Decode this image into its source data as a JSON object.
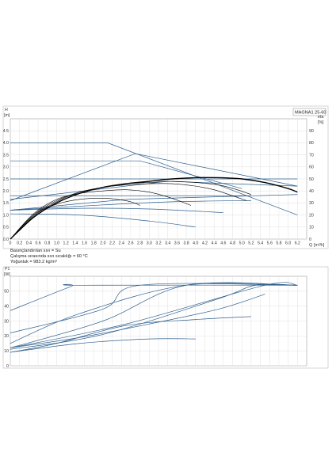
{
  "chart_data": [
    {
      "type": "line",
      "title": "MAGNA1 25-60",
      "ylabel_left": "H",
      "ylabel_left_unit": "[m]",
      "ylabel_right": "eta",
      "ylabel_right_unit": "[%]",
      "xlabel": "Q",
      "xlabel_unit": "[m³/h]",
      "xlim": [
        0,
        6.4
      ],
      "ylim": [
        0,
        5.0
      ],
      "ylim_right": [
        0,
        100
      ],
      "x_ticks": [
        "0",
        "0.2",
        "0.4",
        "0.6",
        "0.8",
        "1.0",
        "1.2",
        "1.4",
        "1.6",
        "1.8",
        "2.0",
        "2.2",
        "2.4",
        "2.6",
        "2.8",
        "3.0",
        "3.2",
        "3.4",
        "3.6",
        "3.8",
        "4.0",
        "4.2",
        "4.4",
        "4.6",
        "4.8",
        "5.0",
        "5.2",
        "5.4",
        "5.6",
        "5.8",
        "6.0",
        "6.2"
      ],
      "y_ticks": [
        "0.0",
        "0.5",
        "1.0",
        "1.5",
        "2.0",
        "2.5",
        "3.0",
        "3.5",
        "4.0",
        "4.5"
      ],
      "y_right_ticks": [
        "0",
        "10",
        "20",
        "30",
        "40",
        "50",
        "60",
        "70",
        "80",
        "90"
      ],
      "grid": true,
      "series": [
        {
          "kind": "pump-curve",
          "color": "#2e5f8e",
          "x": [
            0,
            2.1,
            6.2
          ],
          "y": [
            4.0,
            4.0,
            1.0
          ]
        },
        {
          "kind": "pump-curve",
          "color": "#2e5f8e",
          "x": [
            0,
            2.8,
            5.0
          ],
          "y": [
            3.25,
            3.25,
            2.1
          ]
        },
        {
          "kind": "pump-curve",
          "color": "#2e5f8e",
          "x": [
            0,
            3.8,
            6.2
          ],
          "y": [
            2.5,
            2.5,
            2.5
          ]
        },
        {
          "kind": "pump-curve",
          "color": "#2e5f8e",
          "x": [
            0,
            2.6,
            5.2
          ],
          "y": [
            1.8,
            1.8,
            1.8
          ]
        },
        {
          "kind": "pump-curve",
          "color": "#2e5f8e",
          "x": [
            0,
            3.4,
            6.2
          ],
          "y": [
            1.65,
            2.4,
            2.2
          ]
        },
        {
          "kind": "pump-curve",
          "color": "#2e5f8e",
          "x": [
            0,
            2.7,
            6.2
          ],
          "y": [
            1.6,
            3.55,
            2.2
          ]
        },
        {
          "kind": "pump-curve",
          "color": "#2e5f8e",
          "x": [
            0,
            2.5,
            6.2
          ],
          "y": [
            1.2,
            1.65,
            1.85
          ]
        },
        {
          "kind": "pump-curve",
          "color": "#2e5f8e",
          "x": [
            0,
            2.0,
            3.5,
            5.2
          ],
          "y": [
            1.2,
            1.42,
            1.55,
            1.6
          ]
        },
        {
          "kind": "pump-curve",
          "color": "#2e5f8e",
          "x": [
            0,
            1.5,
            3.0,
            4.6
          ],
          "y": [
            1.2,
            1.28,
            1.25,
            1.1
          ]
        },
        {
          "kind": "pump-curve",
          "color": "#2e5f8e",
          "x": [
            0,
            1.5,
            3.0,
            4.0
          ],
          "y": [
            1.05,
            1.0,
            0.75,
            0.5
          ]
        },
        {
          "kind": "efficiency",
          "color": "#000000",
          "x": [
            0,
            0.5,
            1.0,
            1.5,
            2.0,
            2.5,
            3.0,
            3.5,
            4.0,
            4.5,
            5.0,
            5.5,
            6.0,
            6.2
          ],
          "y": [
            0,
            18,
            30,
            38,
            43,
            46,
            48,
            50,
            51,
            51,
            50,
            47,
            42,
            39
          ]
        },
        {
          "kind": "efficiency",
          "color": "#000000",
          "x": [
            0,
            0.5,
            1.0,
            1.5,
            2.0,
            2.5,
            3.0,
            3.5,
            4.0,
            4.5,
            4.9,
            5.2
          ],
          "y": [
            0,
            19,
            31,
            39,
            43,
            46,
            47,
            48,
            47,
            45,
            41,
            37
          ]
        },
        {
          "kind": "efficiency",
          "color": "#000000",
          "x": [
            0,
            0.5,
            1.0,
            1.5,
            2.0,
            2.5,
            3.0,
            3.5,
            4.0,
            4.4,
            4.8,
            5.1
          ],
          "y": [
            0,
            20,
            32,
            39,
            43,
            45,
            46,
            46,
            44,
            41,
            36,
            32
          ]
        },
        {
          "kind": "efficiency",
          "color": "#000000",
          "x": [
            0,
            0.5,
            1.0,
            1.5,
            2.0,
            2.5,
            3.0,
            3.4,
            3.7,
            3.9
          ],
          "y": [
            0,
            21,
            33,
            38,
            40,
            41,
            39,
            35,
            31,
            28
          ]
        },
        {
          "kind": "efficiency",
          "color": "#000000",
          "x": [
            0,
            0.5,
            1.0,
            1.5,
            2.0,
            2.3,
            2.6,
            2.8
          ],
          "y": [
            0,
            20,
            29,
            33,
            34,
            33,
            31,
            28
          ]
        }
      ]
    },
    {
      "type": "line",
      "ylabel": "P1",
      "ylabel_unit": "[W]",
      "xlim": [
        0,
        6.4
      ],
      "ylim": [
        0,
        60
      ],
      "y_ticks": [
        "0",
        "10",
        "20",
        "30",
        "40",
        "50"
      ],
      "grid": true,
      "series": [
        {
          "color": "#2e5f8e",
          "x": [
            0,
            1.3,
            1.5,
            6.2
          ],
          "y": [
            37,
            53,
            54,
            54
          ]
        },
        {
          "color": "#2e5f8e",
          "x": [
            0,
            2.0,
            2.8,
            6.2
          ],
          "y": [
            22,
            38,
            54,
            54
          ]
        },
        {
          "color": "#2e5f8e",
          "x": [
            0,
            1.5,
            3.8,
            6.2
          ],
          "y": [
            15,
            35,
            54,
            54
          ]
        },
        {
          "color": "#2e5f8e",
          "x": [
            0,
            2.0,
            3.8,
            6.2
          ],
          "y": [
            12,
            30,
            54,
            54
          ]
        },
        {
          "color": "#2e5f8e",
          "x": [
            0,
            2.5,
            5.5,
            6.2
          ],
          "y": [
            12,
            28,
            54,
            54
          ]
        },
        {
          "color": "#2e5f8e",
          "x": [
            0,
            2.0,
            4.5,
            5.3,
            6.2
          ],
          "y": [
            11,
            21,
            45,
            54,
            54
          ]
        },
        {
          "color": "#2e5f8e",
          "x": [
            0,
            1.5,
            3.0,
            4.5,
            5.5
          ],
          "y": [
            12,
            19,
            28,
            38,
            48
          ]
        },
        {
          "color": "#2e5f8e",
          "x": [
            0,
            1.0,
            2.5,
            4.0,
            5.2
          ],
          "y": [
            9,
            15,
            27,
            31,
            33
          ]
        },
        {
          "color": "#2e5f8e",
          "x": [
            0,
            1.5,
            3.0,
            4.0
          ],
          "y": [
            9,
            15,
            18,
            18
          ]
        }
      ]
    }
  ],
  "conditions": [
    "Basınçlandırılan sıvı = Su",
    "Çalışma sırasında sıvı sıcaklığı = 60 °C",
    "Yoğunluk = 983.2 kg/m³"
  ]
}
